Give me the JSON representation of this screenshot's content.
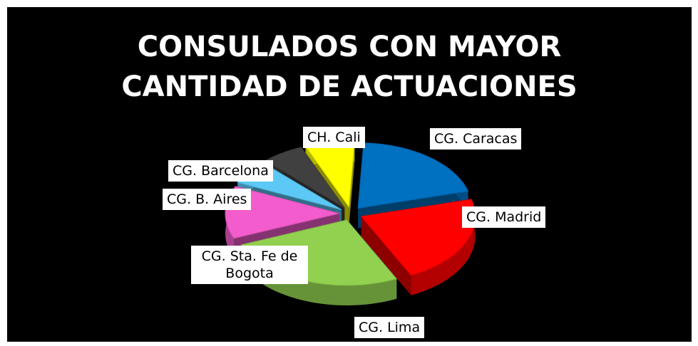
{
  "chart_data": {
    "type": "pie3d",
    "title": "CONSULADOS CON MAYOR CANTIDAD DE ACTUACIONES",
    "categories": [
      "CG. Caracas",
      "CG. Madrid",
      "CG. Lima",
      "CG. Sta. Fe de Bogota",
      "CG. B. Aires",
      "CG. Barcelona",
      "CH. Cali"
    ],
    "values": [
      20,
      22,
      26,
      13,
      6,
      6,
      7
    ],
    "colors": [
      "#0070c0",
      "#ff0000",
      "#92d050",
      "#f25ccc",
      "#5bc8f5",
      "#404040",
      "#ffff00"
    ]
  }
}
